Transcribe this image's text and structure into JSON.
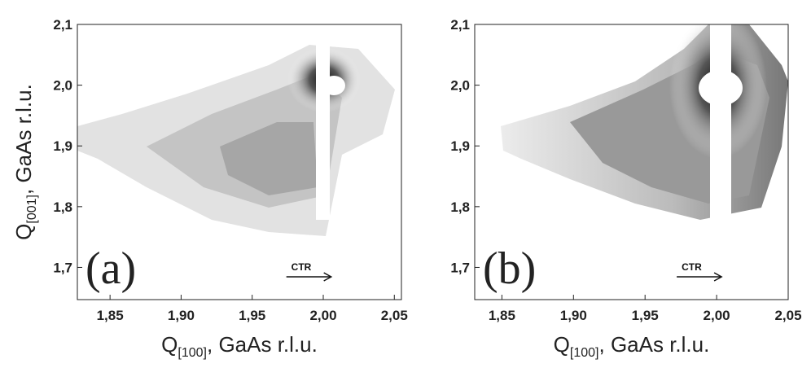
{
  "chart_data": [
    {
      "type": "contour",
      "panel_label": "(a)",
      "annotation": "CTR",
      "xlabel": {
        "main": "Q",
        "sub": "[100]",
        "rest": ", GaAs r.l.u."
      },
      "ylabel": {
        "main": "Q",
        "sub": "[001]",
        "rest": ", GaAs r.l.u."
      },
      "xlim": [
        1.827,
        2.055
      ],
      "ylim": [
        1.647,
        2.1
      ],
      "xticks": [
        {
          "value": 1.85,
          "label": "1,85"
        },
        {
          "value": 1.9,
          "label": "1,90"
        },
        {
          "value": 1.95,
          "label": "1,95"
        },
        {
          "value": 2.0,
          "label": "2,00"
        },
        {
          "value": 2.05,
          "label": "2,05"
        }
      ],
      "yticks": [
        {
          "value": 1.7,
          "label": "1,7"
        },
        {
          "value": 1.8,
          "label": "1,8"
        },
        {
          "value": 1.9,
          "label": "1,9"
        },
        {
          "value": 2.0,
          "label": "2,0"
        },
        {
          "value": 2.1,
          "label": "2,1"
        }
      ]
    },
    {
      "type": "contour",
      "panel_label": "(b)",
      "annotation": "CTR",
      "xlabel": {
        "main": "Q",
        "sub": "[100]",
        "rest": ", GaAs r.l.u."
      },
      "xlim": [
        1.831,
        2.05
      ],
      "ylim": [
        1.647,
        2.1
      ],
      "xticks": [
        {
          "value": 1.85,
          "label": "1,85"
        },
        {
          "value": 1.9,
          "label": "1,90"
        },
        {
          "value": 1.95,
          "label": "1,95"
        },
        {
          "value": 2.0,
          "label": "2,00"
        },
        {
          "value": 2.05,
          "label": "2,05"
        }
      ],
      "yticks": [
        {
          "value": 1.7,
          "label": "1,7"
        },
        {
          "value": 1.8,
          "label": "1,8"
        },
        {
          "value": 1.9,
          "label": "1,9"
        },
        {
          "value": 2.0,
          "label": "2,0"
        },
        {
          "value": 2.1,
          "label": "2,1"
        }
      ]
    }
  ]
}
